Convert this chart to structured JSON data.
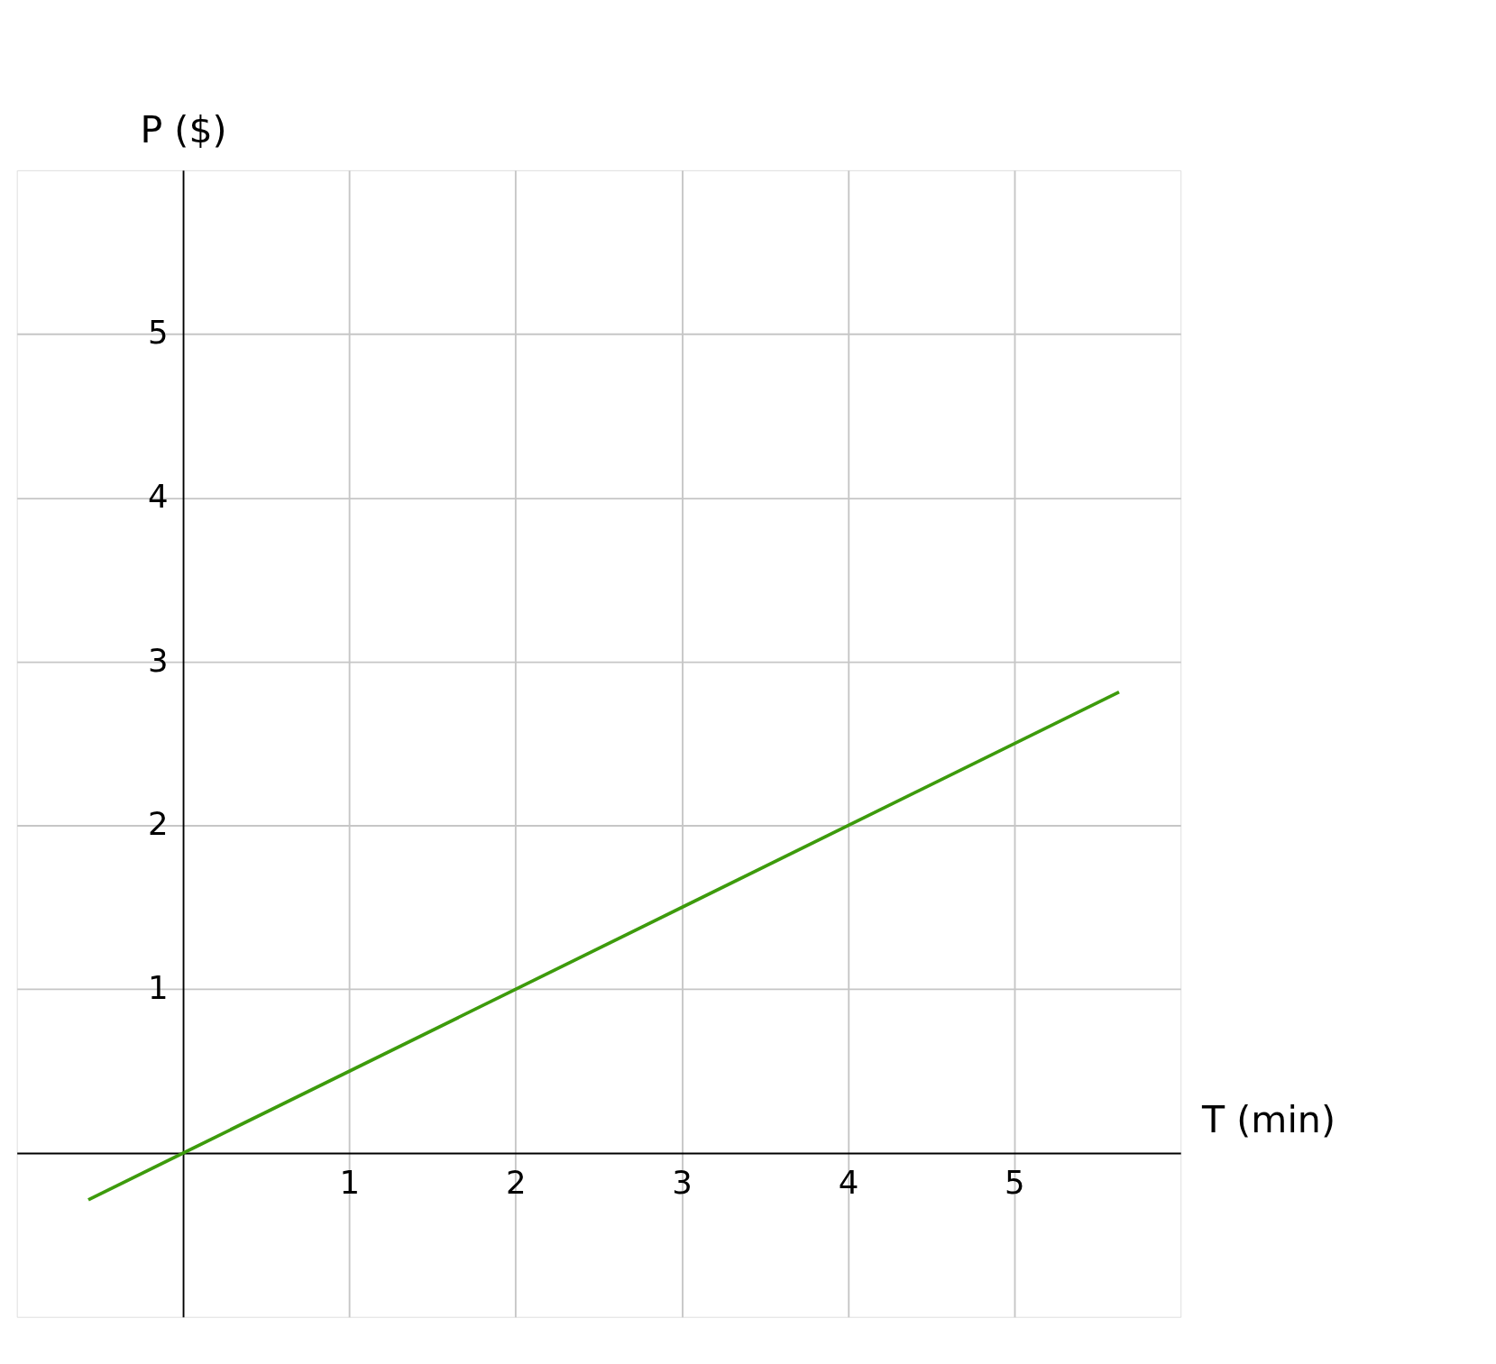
{
  "chart_data": {
    "type": "line",
    "xlabel": "T (min)",
    "ylabel": "P ($)",
    "xlim": [
      -1,
      6
    ],
    "ylim": [
      -1,
      6
    ],
    "xticks": [
      1,
      2,
      3,
      4,
      5
    ],
    "yticks": [
      1,
      2,
      3,
      4,
      5
    ],
    "grid": true,
    "series": [
      {
        "color": "#3d9b0c",
        "x": [
          -0.57,
          5.63
        ],
        "values": [
          -0.285,
          2.815
        ]
      }
    ]
  }
}
